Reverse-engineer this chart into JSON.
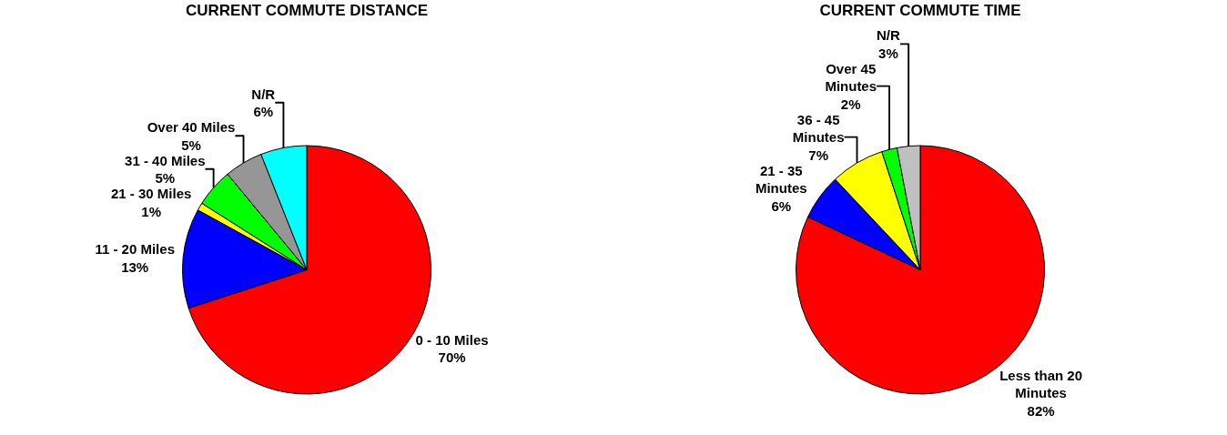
{
  "chart_data": [
    {
      "type": "pie",
      "title": "CURRENT COMMUTE DISTANCE",
      "categories": [
        "0 - 10 Miles",
        "11 - 20 Miles",
        "21 - 30 Miles",
        "31 - 40 Miles",
        "Over 40 Miles",
        "N/R"
      ],
      "values": [
        70,
        13,
        1,
        5,
        5,
        6
      ],
      "value_labels": [
        "70%",
        "13%",
        "1%",
        "5%",
        "5%",
        "6%"
      ],
      "colors": [
        "#ff0000",
        "#0000ff",
        "#ffff00",
        "#00ff00",
        "#969696",
        "#00ffff"
      ],
      "legend": false
    },
    {
      "type": "pie",
      "title": "CURRENT COMMUTE TIME",
      "categories": [
        "Less than 20 Minutes",
        "21 - 35 Minutes",
        "36 - 45 Minutes",
        "Over 45 Minutes",
        "N/R"
      ],
      "values": [
        82,
        6,
        7,
        2,
        3
      ],
      "value_labels": [
        "82%",
        "6%",
        "7%",
        "2%",
        "3%"
      ],
      "colors": [
        "#ff0000",
        "#0000ff",
        "#ffff00",
        "#00ff00",
        "#c0c0c0"
      ],
      "legend": false
    }
  ]
}
